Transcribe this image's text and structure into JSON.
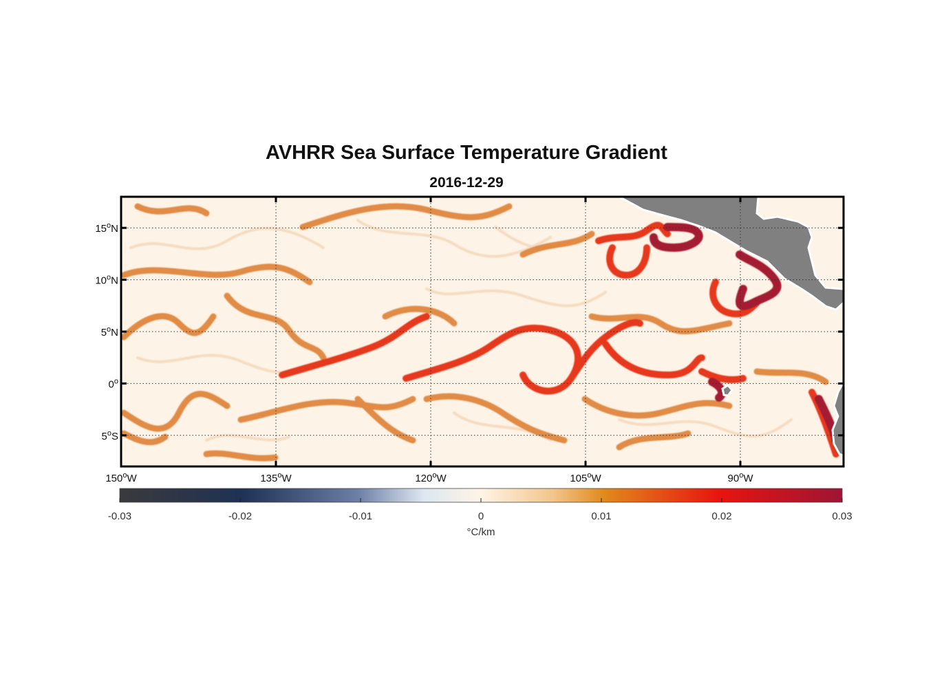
{
  "title": "AVHRR Sea Surface Temperature Gradient",
  "subtitle": "2016-12-29",
  "map": {
    "lon_range": [
      -150,
      -80
    ],
    "lat_range": [
      -8,
      18
    ],
    "lat_ticks": [
      {
        "value": 15,
        "label": "15",
        "suffix": "N"
      },
      {
        "value": 10,
        "label": "10",
        "suffix": "N"
      },
      {
        "value": 5,
        "label": "5",
        "suffix": "N"
      },
      {
        "value": 0,
        "label": "0",
        "suffix": ""
      },
      {
        "value": -5,
        "label": "5",
        "suffix": "S"
      }
    ],
    "lon_ticks": [
      {
        "value": -150,
        "label": "150",
        "suffix": "W"
      },
      {
        "value": -135,
        "label": "135",
        "suffix": "W"
      },
      {
        "value": -120,
        "label": "120",
        "suffix": "W"
      },
      {
        "value": -105,
        "label": "105",
        "suffix": "W"
      },
      {
        "value": -90,
        "label": "90",
        "suffix": "W"
      }
    ],
    "degree_symbol": "o",
    "land_color": "#808080",
    "background_color": "#fdf3e6"
  },
  "colorbar": {
    "ticks": [
      "-0.03",
      "-0.02",
      "-0.01",
      "0",
      "0.01",
      "0.02",
      "0.03"
    ],
    "unit": "°C/km",
    "colors": [
      "#3a3a3c",
      "#1f3154",
      "#6d7fa6",
      "#fff4e6",
      "#e08a1c",
      "#e8140f",
      "#9d1535"
    ]
  }
}
